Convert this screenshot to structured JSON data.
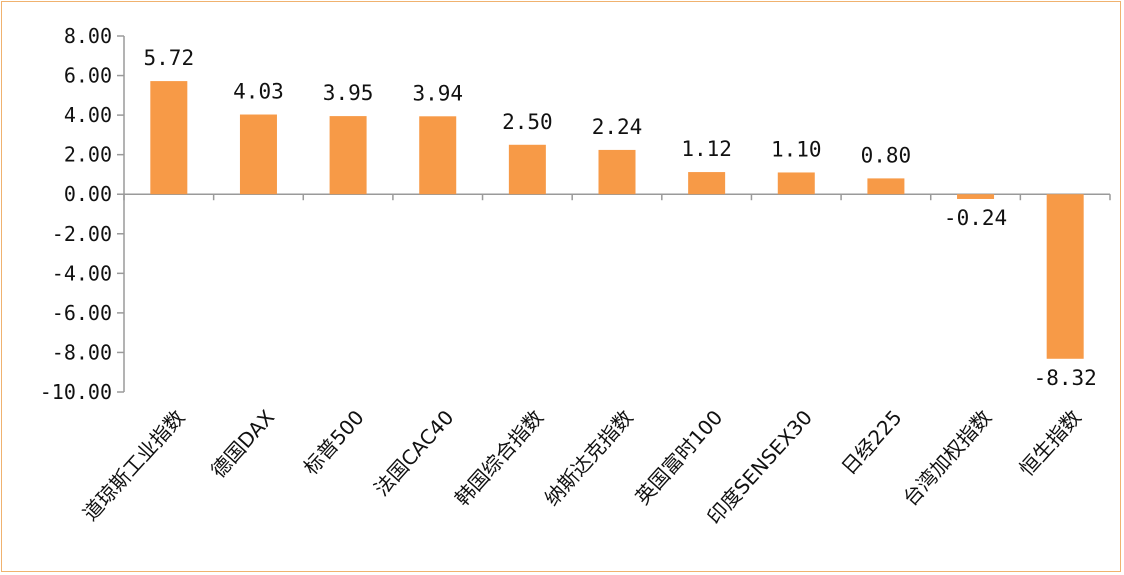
{
  "chart_data": {
    "type": "bar",
    "categories": [
      "道琼斯工业指数",
      "德国DAX",
      "标普500",
      "法国CAC40",
      "韩国综合指数",
      "纳斯达克指数",
      "英国富时100",
      "印度SENSEX30",
      "日经225",
      "台湾加权指数",
      "恒生指数"
    ],
    "values": [
      5.72,
      4.03,
      3.95,
      3.94,
      2.5,
      2.24,
      1.12,
      1.1,
      0.8,
      -0.24,
      -8.32
    ],
    "value_labels": [
      "5.72",
      "4.03",
      "3.95",
      "3.94",
      "2.50",
      "2.24",
      "1.12",
      "1.10",
      "0.80",
      "-0.24",
      "-8.32"
    ],
    "y_ticks": [
      8,
      6,
      4,
      2,
      0,
      -2,
      -4,
      -6,
      -8,
      -10
    ],
    "y_tick_labels": [
      "8.00",
      "6.00",
      "4.00",
      "2.00",
      "0.00",
      "-2.00",
      "-4.00",
      "-6.00",
      "-8.00",
      "-10.00"
    ],
    "ylim": [
      -10,
      8
    ],
    "title": "",
    "xlabel": "",
    "ylabel": "",
    "grid": false,
    "bar_color": "#F79A47",
    "border_color": "#F0B26F"
  }
}
